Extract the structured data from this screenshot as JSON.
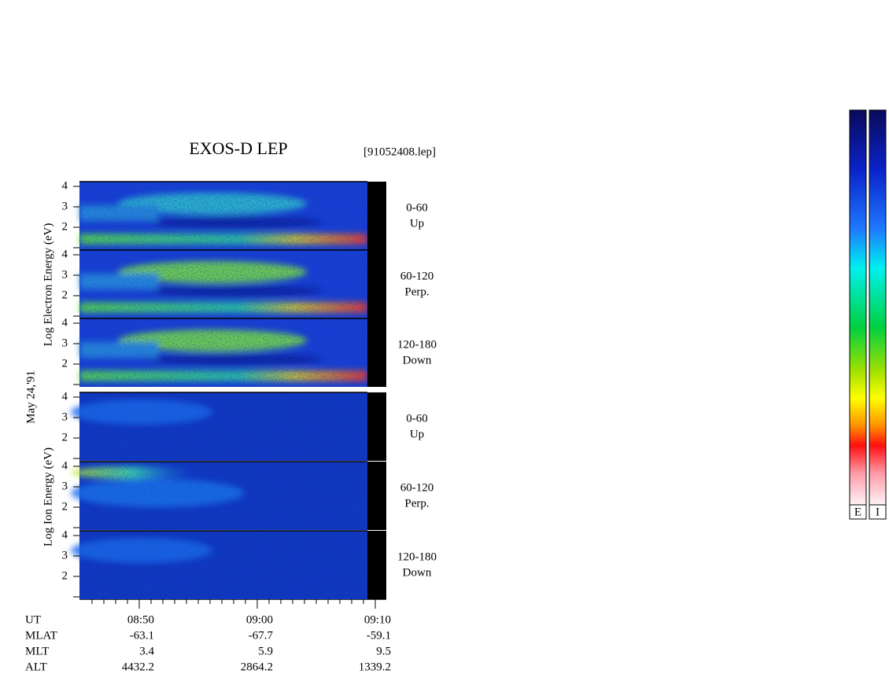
{
  "header": {
    "title": "EXOS-D LEP",
    "file": "[91052408.lep]"
  },
  "side_labels": {
    "electron": "Log   Electron   Energy (eV)",
    "date": "May 24,'91",
    "ion": "Log    Ion    Energy (eV)"
  },
  "panels": [
    {
      "ticks": [
        "4",
        "3",
        "2"
      ],
      "angle": "0-60",
      "direction": "Up"
    },
    {
      "ticks": [
        "4",
        "3",
        "2"
      ],
      "angle": "60-120",
      "direction": "Perp."
    },
    {
      "ticks": [
        "4",
        "3",
        "2"
      ],
      "angle": "120-180",
      "direction": "Down"
    },
    {
      "ticks": [
        "4",
        "3",
        "2"
      ],
      "angle": "0-60",
      "direction": "Up"
    },
    {
      "ticks": [
        "4",
        "3",
        "2"
      ],
      "angle": "60-120",
      "direction": "Perp."
    },
    {
      "ticks": [
        "4",
        "3",
        "2"
      ],
      "angle": "120-180",
      "direction": "Down"
    }
  ],
  "footer": {
    "rows": [
      [
        "UT",
        "08:50",
        "09:00",
        "09:10"
      ],
      [
        "MLAT",
        "-63.1",
        "-67.7",
        "-59.1"
      ],
      [
        "MLT",
        "3.4",
        "5.9",
        "9.5"
      ],
      [
        "ALT",
        "4432.2",
        "2864.2",
        "1339.2"
      ]
    ]
  },
  "colorbar": {
    "labels": [
      "E",
      "I"
    ]
  }
}
